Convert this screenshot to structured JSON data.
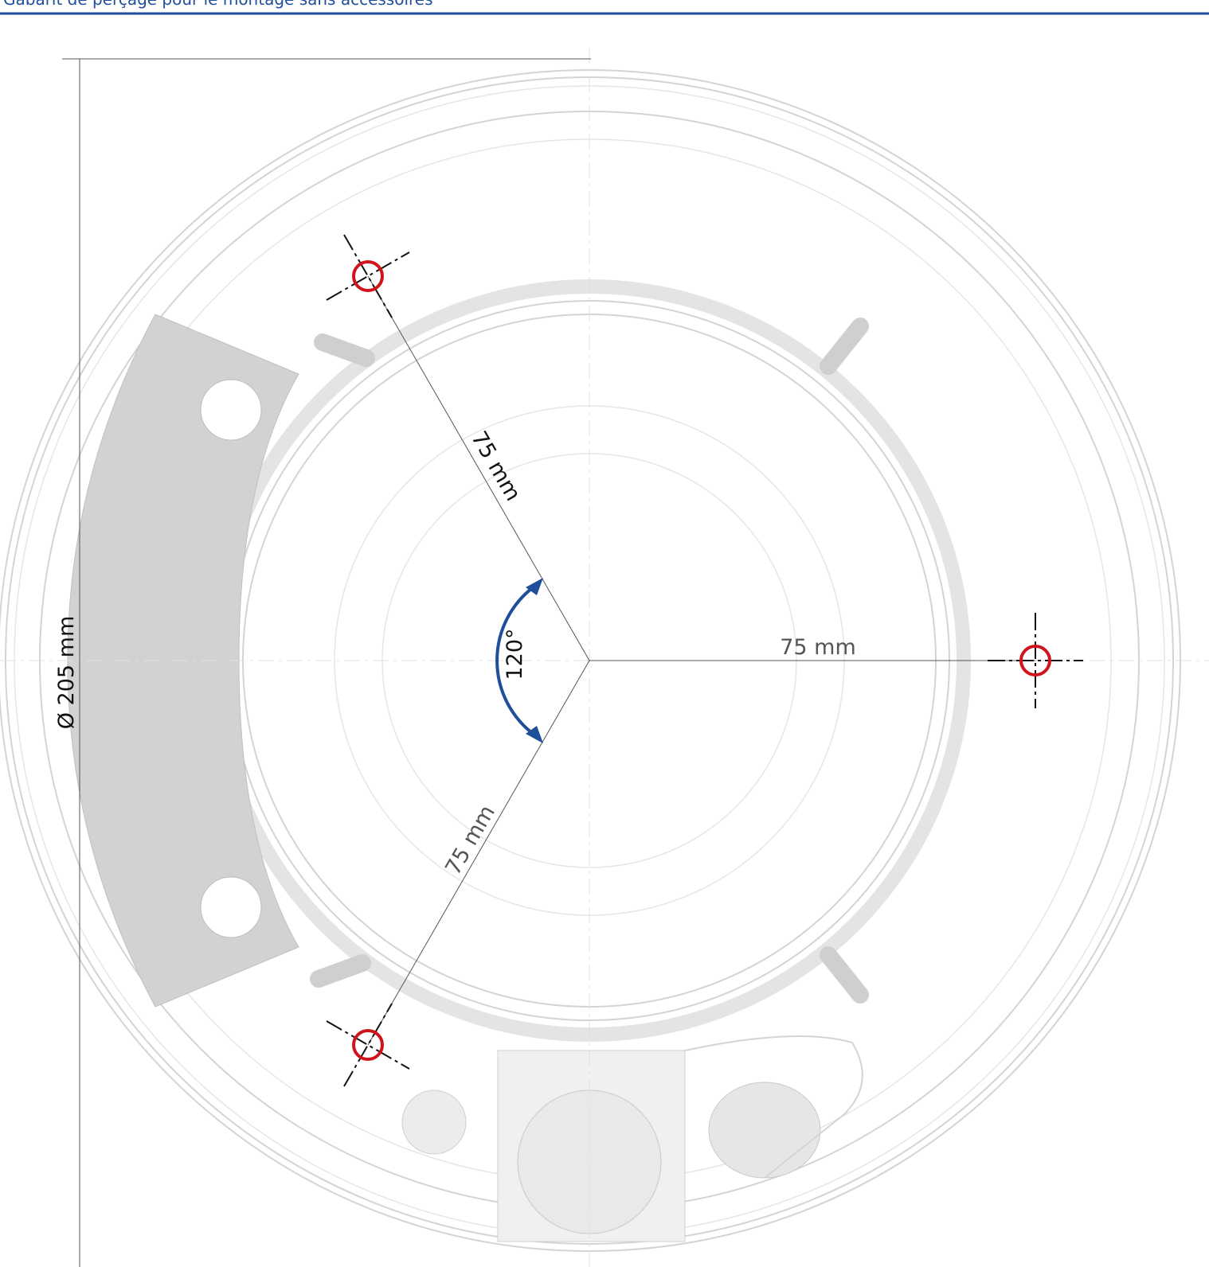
{
  "header": {
    "title": "Gabarit de perçage pour le montage sans accessoires"
  },
  "drawing": {
    "upper_radius": "75 mm",
    "right_radius": "75 mm",
    "lower_radius": "75 mm",
    "angle": "120°",
    "diameter": "Ø 205 mm"
  }
}
